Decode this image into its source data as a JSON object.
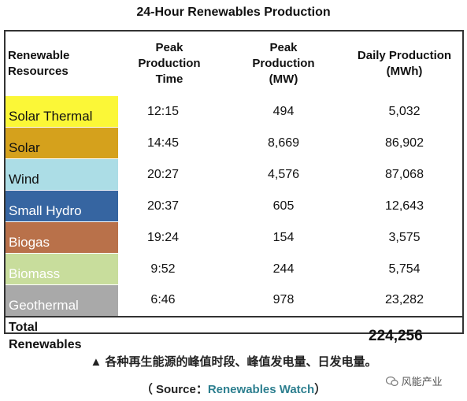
{
  "title": "24-Hour Renewables Production",
  "table": {
    "headers": [
      "Renewable Resources",
      "Peak Production Time",
      "Peak Production (MW)",
      "Daily Production (MWh)"
    ],
    "rows": [
      [
        "Solar Thermal",
        "12:15",
        "494",
        "5,032"
      ],
      [
        "Solar",
        "14:45",
        "8,669",
        "86,902"
      ],
      [
        "Wind",
        "20:27",
        "4,576",
        "87,068"
      ],
      [
        "Small Hydro",
        "20:37",
        "605",
        "12,643"
      ],
      [
        "Biogas",
        "19:24",
        "154",
        "3,575"
      ],
      [
        "Biomass",
        "9:52",
        "244",
        "5,754"
      ],
      [
        "Geothermal",
        "6:46",
        "978",
        "23,282"
      ]
    ],
    "total": {
      "label": "Total Renewables",
      "value": "224,256"
    }
  },
  "caption": "▲ 各种再生能源的峰值时段、峰值发电量、日发电量。",
  "source": {
    "prefix": "（ Source：",
    "name": "Renewables Watch",
    "suffix": "）"
  },
  "watermark": "风能产业"
}
